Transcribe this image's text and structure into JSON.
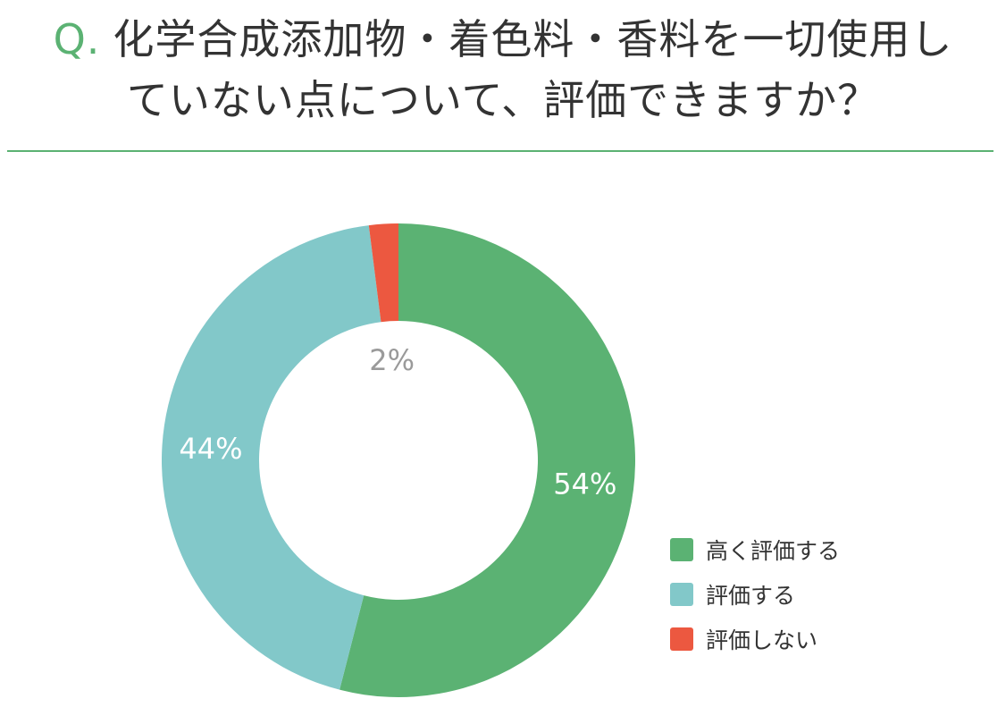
{
  "header": {
    "prefix": "Q.",
    "title_line1": "化学合成添加物・着色料・香料を一切使用し",
    "title_line2": "ていない点について、評価できますか？"
  },
  "chart_data": {
    "type": "pie",
    "variant": "donut",
    "title": "Q. 化学合成添加物・着色料・香料を一切使用していない点について、評価できますか？",
    "categories": [
      "高く評価する",
      "評価する",
      "評価しない"
    ],
    "values": [
      54,
      44,
      2
    ],
    "unit": "%",
    "data_labels": [
      "54%",
      "44%",
      "2%"
    ],
    "colors": [
      "#5bb273",
      "#82c8c9",
      "#ec5840"
    ],
    "label_colors": [
      "#ffffff",
      "#ffffff",
      "#9a9a9a"
    ],
    "start_angle": "12 o'clock",
    "direction": "clockwise",
    "legend_position": "bottom-right"
  }
}
